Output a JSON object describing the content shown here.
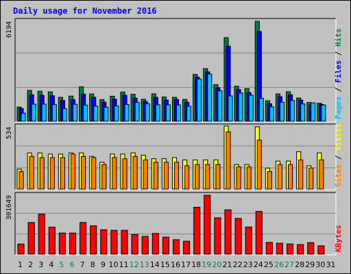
{
  "chart_data": {
    "title": "Daily usage for November 2016",
    "type": "bar",
    "categories": [
      "1",
      "2",
      "3",
      "4",
      "5",
      "6",
      "7",
      "8",
      "9",
      "10",
      "11",
      "12",
      "13",
      "14",
      "15",
      "16",
      "17",
      "18",
      "19",
      "20",
      "21",
      "22",
      "23",
      "24",
      "25",
      "26",
      "27",
      "28",
      "29",
      "30",
      "31"
    ],
    "weekend_days": [
      5,
      6,
      12,
      13,
      19,
      20,
      26,
      27
    ],
    "panels": [
      {
        "name": "hits_files_pages",
        "ymax_label": "6194",
        "ymax": 6194,
        "right_labels": [
          {
            "text": "Hits",
            "color": "#008040"
          },
          {
            "text": "Files",
            "color": "#0000ff"
          },
          {
            "text": "Pages",
            "color": "#00c0ff"
          }
        ],
        "series": [
          {
            "name": "Hits",
            "color": "#008040",
            "values": [
              880,
              1910,
              1860,
              1820,
              1480,
              1560,
              2130,
              1690,
              1340,
              1550,
              1810,
              1670,
              1360,
              1700,
              1500,
              1480,
              1350,
              2900,
              3260,
              2270,
              5180,
              2170,
              2020,
              6194,
              1270,
              1690,
              1830,
              1440,
              1160,
              1120,
              0
            ]
          },
          {
            "name": "Files",
            "color": "#0000ff",
            "values": [
              780,
              1640,
              1610,
              1580,
              1290,
              1340,
              1680,
              1490,
              1180,
              1370,
              1610,
              1430,
              1220,
              1480,
              1310,
              1350,
              1180,
              2730,
              3060,
              2080,
              4650,
              1960,
              1780,
              5560,
              1090,
              1520,
              1640,
              1310,
              1010,
              1040,
              0
            ]
          },
          {
            "name": "Pages",
            "color": "#00c0ff",
            "values": [
              500,
              1060,
              1060,
              1030,
              780,
              1050,
              1000,
              940,
              870,
              950,
              1040,
              1170,
              1080,
              1020,
              1020,
              1010,
              930,
              2620,
              2920,
              1880,
              1570,
              1750,
              1610,
              1420,
              890,
              1180,
              1280,
              1070,
              1140,
              1010,
              0
            ]
          }
        ]
      },
      {
        "name": "visits_sites",
        "ymax_label": "534",
        "ymax": 534,
        "right_labels": [
          {
            "text": "Visits",
            "color": "#ffff00"
          },
          {
            "text": "Sites",
            "color": "#ff8000"
          }
        ],
        "series": [
          {
            "name": "Visits",
            "color": "#ffff00",
            "values": [
              170,
              310,
              310,
              300,
              300,
              310,
              310,
              280,
              230,
              300,
              300,
              310,
              290,
              260,
              260,
              270,
              250,
              250,
              250,
              250,
              540,
              210,
              210,
              534,
              180,
              240,
              240,
              320,
              200,
              310,
              0
            ]
          },
          {
            "name": "Sites",
            "color": "#ff8000",
            "values": [
              150,
              280,
              270,
              270,
              270,
              300,
              280,
              270,
              210,
              270,
              260,
              280,
              250,
              230,
              230,
              230,
              200,
              210,
              210,
              210,
              490,
              190,
              190,
              420,
              150,
              210,
              210,
              250,
              180,
              250,
              0
            ]
          }
        ]
      },
      {
        "name": "kbytes",
        "ymax_label": "301649",
        "ymax": 301649,
        "right_labels": [
          {
            "text": "KBytes",
            "color": "#ff0000"
          }
        ],
        "series": [
          {
            "name": "KBytes",
            "color": "#ff0000",
            "values": [
              52000,
              162000,
              205000,
              138000,
              108000,
              108000,
              162000,
              145000,
              125000,
              122000,
              122000,
              101000,
              91000,
              106000,
              87000,
              74000,
              66000,
              240000,
              301649,
              186000,
              227000,
              183000,
              139000,
              219000,
              60000,
              56000,
              52000,
              49000,
              59000,
              43000,
              0
            ]
          }
        ]
      }
    ]
  }
}
